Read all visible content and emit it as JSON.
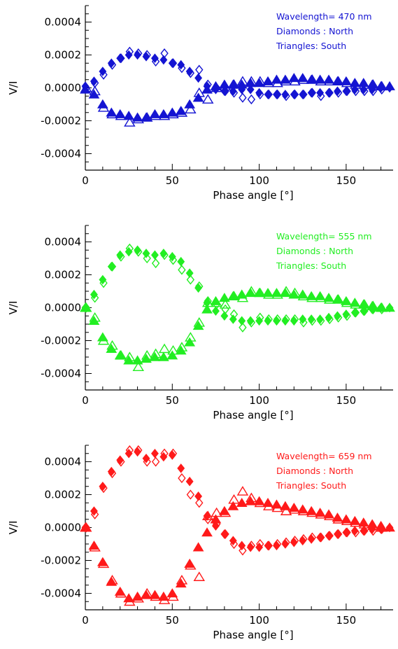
{
  "chart_data": [
    {
      "type": "scatter",
      "panel": "top",
      "color": "#1414d2",
      "xlabel": "Phase angle [°]",
      "ylabel": "V/I",
      "xlim": [
        0,
        177
      ],
      "ylim": [
        -0.0005,
        0.0005
      ],
      "xticks": [
        0,
        50,
        100,
        150
      ],
      "xtick_labels": [
        "0",
        "50",
        "100",
        "150"
      ],
      "yticks": [
        -0.0004,
        -0.0002,
        0.0,
        0.0002,
        0.0004
      ],
      "ytick_labels": [
        "-0.0004",
        "-0.0002",
        "0.0000",
        "0.0002",
        "0.0004"
      ],
      "annotations": [
        "Wavelength= 470 nm",
        "Diamonds : North",
        "Triangles: South"
      ],
      "series": [
        {
          "marker": "diamond-filled",
          "x": [
            0,
            5,
            10,
            15,
            20,
            25,
            30,
            35,
            40,
            45,
            50,
            55,
            60,
            65,
            70,
            75,
            80,
            85,
            90,
            95,
            100,
            105,
            110,
            115,
            120,
            125,
            130,
            135,
            140,
            145,
            150,
            155,
            160,
            165,
            170,
            175
          ],
          "y": [
            1e-05,
            4e-05,
            0.0001,
            0.00015,
            0.00018,
            0.0002,
            0.0002,
            0.00019,
            0.00018,
            0.00017,
            0.00015,
            0.00014,
            0.0001,
            6e-05,
            1e-05,
            -1e-05,
            -2e-05,
            -2e-05,
            -1e-05,
            -1e-05,
            -3e-05,
            -4e-05,
            -4e-05,
            -4e-05,
            -4e-05,
            -4e-05,
            -3e-05,
            -3e-05,
            -3e-05,
            -2e-05,
            -2e-05,
            -1e-05,
            -1e-05,
            -1e-05,
            0.0,
            0.0
          ]
        },
        {
          "marker": "diamond-open",
          "x": [
            0,
            5,
            10,
            15,
            20,
            25,
            30,
            35,
            40,
            45,
            50,
            55,
            60,
            65,
            70,
            75,
            80,
            85,
            90,
            95,
            100,
            105,
            110,
            115,
            120,
            125,
            130,
            135,
            140,
            145,
            150,
            155,
            160,
            165,
            170
          ],
          "y": [
            0.0,
            3e-05,
            8e-05,
            0.00014,
            0.00018,
            0.00022,
            0.00021,
            0.0002,
            0.00016,
            0.00021,
            0.00015,
            0.00012,
            9e-05,
            0.00011,
            2e-05,
            0.0,
            -2e-05,
            -3e-05,
            -6e-05,
            -7e-05,
            -4e-05,
            -4e-05,
            -4e-05,
            -5e-05,
            -4e-05,
            -4e-05,
            -3e-05,
            -5e-05,
            -3e-05,
            -3e-05,
            -2e-05,
            -2e-05,
            -2e-05,
            -2e-05,
            -1e-05
          ]
        },
        {
          "marker": "triangle-filled",
          "x": [
            0,
            5,
            10,
            15,
            20,
            25,
            30,
            35,
            40,
            45,
            50,
            55,
            60,
            65,
            70,
            75,
            80,
            85,
            90,
            95,
            100,
            105,
            110,
            115,
            120,
            125,
            130,
            135,
            140,
            145,
            150,
            155,
            160,
            165,
            170,
            175
          ],
          "y": [
            -1e-05,
            -4e-05,
            -0.0001,
            -0.00015,
            -0.00016,
            -0.00017,
            -0.00018,
            -0.00018,
            -0.00016,
            -0.00016,
            -0.00015,
            -0.00014,
            -0.0001,
            -6e-05,
            -1e-05,
            1e-05,
            2e-05,
            2e-05,
            2e-05,
            3e-05,
            3e-05,
            4e-05,
            5e-05,
            5e-05,
            6e-05,
            6e-05,
            5e-05,
            5e-05,
            5e-05,
            4e-05,
            4e-05,
            3e-05,
            3e-05,
            2e-05,
            1e-05,
            1e-05
          ]
        },
        {
          "marker": "triangle-open",
          "x": [
            0,
            5,
            10,
            15,
            20,
            25,
            30,
            35,
            40,
            45,
            50,
            55,
            60,
            65,
            70,
            75,
            80,
            85,
            90,
            95,
            100,
            105,
            110,
            115,
            120,
            125,
            130,
            135,
            140,
            145,
            150,
            155,
            160,
            165,
            170
          ],
          "y": [
            0.0,
            -2e-05,
            -0.00012,
            -0.00016,
            -0.00017,
            -0.00021,
            -0.00019,
            -0.00018,
            -0.00017,
            -0.00017,
            -0.00016,
            -0.00015,
            -0.00013,
            -3e-05,
            -7e-05,
            0.0,
            1e-05,
            2e-05,
            4e-05,
            4e-05,
            4e-05,
            3e-05,
            3e-05,
            4e-05,
            4e-05,
            5e-05,
            5e-05,
            4e-05,
            4e-05,
            4e-05,
            3e-05,
            2e-05,
            2e-05,
            2e-05,
            1e-05
          ]
        }
      ]
    },
    {
      "type": "scatter",
      "panel": "middle",
      "color": "#22ee22",
      "xlabel": "Phase angle [°]",
      "ylabel": "V/I",
      "xlim": [
        0,
        177
      ],
      "ylim": [
        -0.0005,
        0.0005
      ],
      "xticks": [
        0,
        50,
        100,
        150
      ],
      "xtick_labels": [
        "0",
        "50",
        "100",
        "150"
      ],
      "yticks": [
        -0.0004,
        -0.0002,
        0.0,
        0.0002,
        0.0004
      ],
      "ytick_labels": [
        "-0.0004",
        "-0.0002",
        "0.0000",
        "0.0002",
        "0.0004"
      ],
      "annotations": [
        "Wavelength= 555 nm",
        "Diamonds : North",
        "Triangles: South"
      ],
      "series": [
        {
          "marker": "diamond-filled",
          "x": [
            0,
            5,
            10,
            15,
            20,
            25,
            30,
            35,
            40,
            45,
            50,
            55,
            60,
            65,
            70,
            75,
            80,
            85,
            90,
            95,
            100,
            105,
            110,
            115,
            120,
            125,
            130,
            135,
            140,
            145,
            150,
            155,
            160,
            165,
            170,
            175
          ],
          "y": [
            0.0,
            8e-05,
            0.00017,
            0.00025,
            0.00032,
            0.00034,
            0.00035,
            0.00033,
            0.00032,
            0.00033,
            0.00031,
            0.00028,
            0.00021,
            0.00012,
            3e-05,
            -2e-05,
            -5e-05,
            -7e-05,
            -8e-05,
            -8e-05,
            -8e-05,
            -8e-05,
            -8e-05,
            -8e-05,
            -8e-05,
            -7e-05,
            -7e-05,
            -7e-05,
            -6e-05,
            -5e-05,
            -4e-05,
            -3e-05,
            -2e-05,
            -1e-05,
            0.0,
            0.0
          ]
        },
        {
          "marker": "diamond-open",
          "x": [
            0,
            5,
            10,
            15,
            20,
            25,
            30,
            35,
            40,
            45,
            50,
            55,
            60,
            65,
            70,
            75,
            80,
            85,
            90,
            95,
            100,
            105,
            110,
            115,
            120,
            125,
            130,
            135,
            140,
            145,
            150,
            155,
            160,
            165,
            170
          ],
          "y": [
            0.0,
            6e-05,
            0.00015,
            0.00025,
            0.00031,
            0.00036,
            0.00034,
            0.0003,
            0.00027,
            0.00032,
            0.00029,
            0.00023,
            0.00017,
            0.00013,
            4e-05,
            2e-05,
            -1e-05,
            -4e-05,
            -0.00012,
            -9e-05,
            -6e-05,
            -7e-05,
            -7e-05,
            -7e-05,
            -7e-05,
            -9e-05,
            -8e-05,
            -8e-05,
            -7e-05,
            -6e-05,
            -5e-05,
            -3e-05,
            -2e-05,
            -1e-05,
            -1e-05
          ]
        },
        {
          "marker": "triangle-filled",
          "x": [
            0,
            5,
            10,
            15,
            20,
            25,
            30,
            35,
            40,
            45,
            50,
            55,
            60,
            65,
            70,
            75,
            80,
            85,
            90,
            95,
            100,
            105,
            110,
            115,
            120,
            125,
            130,
            135,
            140,
            145,
            150,
            155,
            160,
            165,
            170,
            175
          ],
          "y": [
            0.0,
            -8e-05,
            -0.00018,
            -0.00025,
            -0.00029,
            -0.00032,
            -0.00032,
            -0.00031,
            -0.0003,
            -0.0003,
            -0.00029,
            -0.00026,
            -0.00021,
            -0.00011,
            -1e-05,
            4e-05,
            6e-05,
            7e-05,
            8e-05,
            9e-05,
            9e-05,
            9e-05,
            9e-05,
            9e-05,
            8e-05,
            8e-05,
            7e-05,
            7e-05,
            6e-05,
            5e-05,
            4e-05,
            3e-05,
            2e-05,
            1e-05,
            0.0,
            0.0
          ]
        },
        {
          "marker": "triangle-open",
          "x": [
            0,
            5,
            10,
            15,
            20,
            25,
            30,
            35,
            40,
            45,
            50,
            55,
            60,
            65,
            70,
            75,
            80,
            85,
            90,
            95,
            100,
            105,
            110,
            115,
            120,
            125,
            130,
            135,
            140,
            145,
            150,
            155,
            160,
            165,
            170
          ],
          "y": [
            0.0,
            -6e-05,
            -0.0002,
            -0.00023,
            -0.00029,
            -0.0003,
            -0.00036,
            -0.00029,
            -0.00028,
            -0.00025,
            -0.00026,
            -0.00024,
            -0.00018,
            -9e-05,
            3e-05,
            3e-05,
            2e-05,
            7e-05,
            6e-05,
            0.0001,
            9e-05,
            8e-05,
            8e-05,
            0.0001,
            9e-05,
            7e-05,
            6e-05,
            6e-05,
            5e-05,
            5e-05,
            3e-05,
            2e-05,
            2e-05,
            1e-05,
            0.0
          ]
        }
      ]
    },
    {
      "type": "scatter",
      "panel": "bottom",
      "color": "#ff1a1a",
      "xlabel": "Phase angle [°]",
      "ylabel": "V/I",
      "xlim": [
        0,
        177
      ],
      "ylim": [
        -0.0005,
        0.0005
      ],
      "xticks": [
        0,
        50,
        100,
        150
      ],
      "xtick_labels": [
        "0",
        "50",
        "100",
        "150"
      ],
      "yticks": [
        -0.0004,
        -0.0002,
        0.0,
        0.0002,
        0.0004
      ],
      "ytick_labels": [
        "-0.0004",
        "-0.0002",
        "0.0000",
        "0.0002",
        "0.0004"
      ],
      "annotations": [
        "Wavelength= 659 nm",
        "Diamonds : North",
        "Triangles: South"
      ],
      "series": [
        {
          "marker": "diamond-filled",
          "x": [
            0,
            5,
            10,
            15,
            20,
            25,
            30,
            35,
            40,
            45,
            50,
            55,
            60,
            65,
            70,
            75,
            80,
            85,
            90,
            95,
            100,
            105,
            110,
            115,
            120,
            125,
            130,
            135,
            140,
            145,
            150,
            155,
            160,
            165,
            170,
            175
          ],
          "y": [
            0.0,
            0.0001,
            0.00025,
            0.00034,
            0.00041,
            0.00045,
            0.00046,
            0.00042,
            0.00045,
            0.00043,
            0.00044,
            0.00036,
            0.00028,
            0.00019,
            7e-05,
            1e-05,
            -4e-05,
            -8e-05,
            -0.00011,
            -0.00012,
            -0.00012,
            -0.00011,
            -0.00011,
            -0.0001,
            -9e-05,
            -8e-05,
            -7e-05,
            -6e-05,
            -5e-05,
            -4e-05,
            -3e-05,
            -2e-05,
            -2e-05,
            -1e-05,
            -1e-05,
            0.0
          ]
        },
        {
          "marker": "diamond-open",
          "x": [
            0,
            5,
            10,
            15,
            20,
            25,
            30,
            35,
            40,
            45,
            50,
            55,
            60,
            65,
            70,
            75,
            80,
            85,
            90,
            95,
            100,
            105,
            110,
            115,
            120,
            125,
            130,
            135,
            140,
            145,
            150,
            155,
            160,
            165,
            170
          ],
          "y": [
            0.0,
            8e-05,
            0.00024,
            0.00033,
            0.0004,
            0.00047,
            0.00047,
            0.0004,
            0.0004,
            0.00045,
            0.00045,
            0.0003,
            0.0002,
            0.00015,
            5e-05,
            2e-05,
            -4e-05,
            -0.0001,
            -0.00014,
            -0.00011,
            -0.0001,
            -0.00011,
            -0.0001,
            -9e-05,
            -8e-05,
            -7e-05,
            -6e-05,
            -6e-05,
            -5e-05,
            -4e-05,
            -3e-05,
            -3e-05,
            -2e-05,
            -2e-05,
            -1e-05
          ]
        },
        {
          "marker": "triangle-filled",
          "x": [
            0,
            5,
            10,
            15,
            20,
            25,
            30,
            35,
            40,
            45,
            50,
            55,
            60,
            65,
            70,
            75,
            80,
            85,
            90,
            95,
            100,
            105,
            110,
            115,
            120,
            125,
            130,
            135,
            140,
            145,
            150,
            155,
            160,
            165,
            170,
            175
          ],
          "y": [
            0.0,
            -0.00011,
            -0.00021,
            -0.00033,
            -0.00039,
            -0.00043,
            -0.00042,
            -0.00041,
            -0.00041,
            -0.00042,
            -0.0004,
            -0.00034,
            -0.00022,
            -0.00012,
            -3e-05,
            5e-05,
            0.0001,
            0.00013,
            0.00015,
            0.00016,
            0.00016,
            0.00015,
            0.00014,
            0.00013,
            0.00012,
            0.00011,
            0.0001,
            9e-05,
            8e-05,
            6e-05,
            5e-05,
            4e-05,
            3e-05,
            2e-05,
            1e-05,
            0.0
          ]
        },
        {
          "marker": "triangle-open",
          "x": [
            0,
            5,
            10,
            15,
            20,
            25,
            30,
            35,
            40,
            45,
            50,
            55,
            60,
            65,
            70,
            75,
            80,
            85,
            90,
            95,
            100,
            105,
            110,
            115,
            120,
            125,
            130,
            135,
            140,
            145,
            150,
            155,
            160,
            165,
            170
          ],
          "y": [
            0.0,
            -0.00012,
            -0.00022,
            -0.00032,
            -0.0004,
            -0.00045,
            -0.00043,
            -0.0004,
            -0.00042,
            -0.00044,
            -0.00042,
            -0.00032,
            -0.00023,
            -0.0003,
            7e-05,
            9e-05,
            9e-05,
            0.00017,
            0.00022,
            0.00018,
            0.00015,
            0.00013,
            0.00012,
            0.0001,
            0.00011,
            0.0001,
            9e-05,
            8e-05,
            7e-05,
            5e-05,
            4e-05,
            3e-05,
            2e-05,
            1e-05,
            0.0
          ]
        }
      ]
    }
  ]
}
